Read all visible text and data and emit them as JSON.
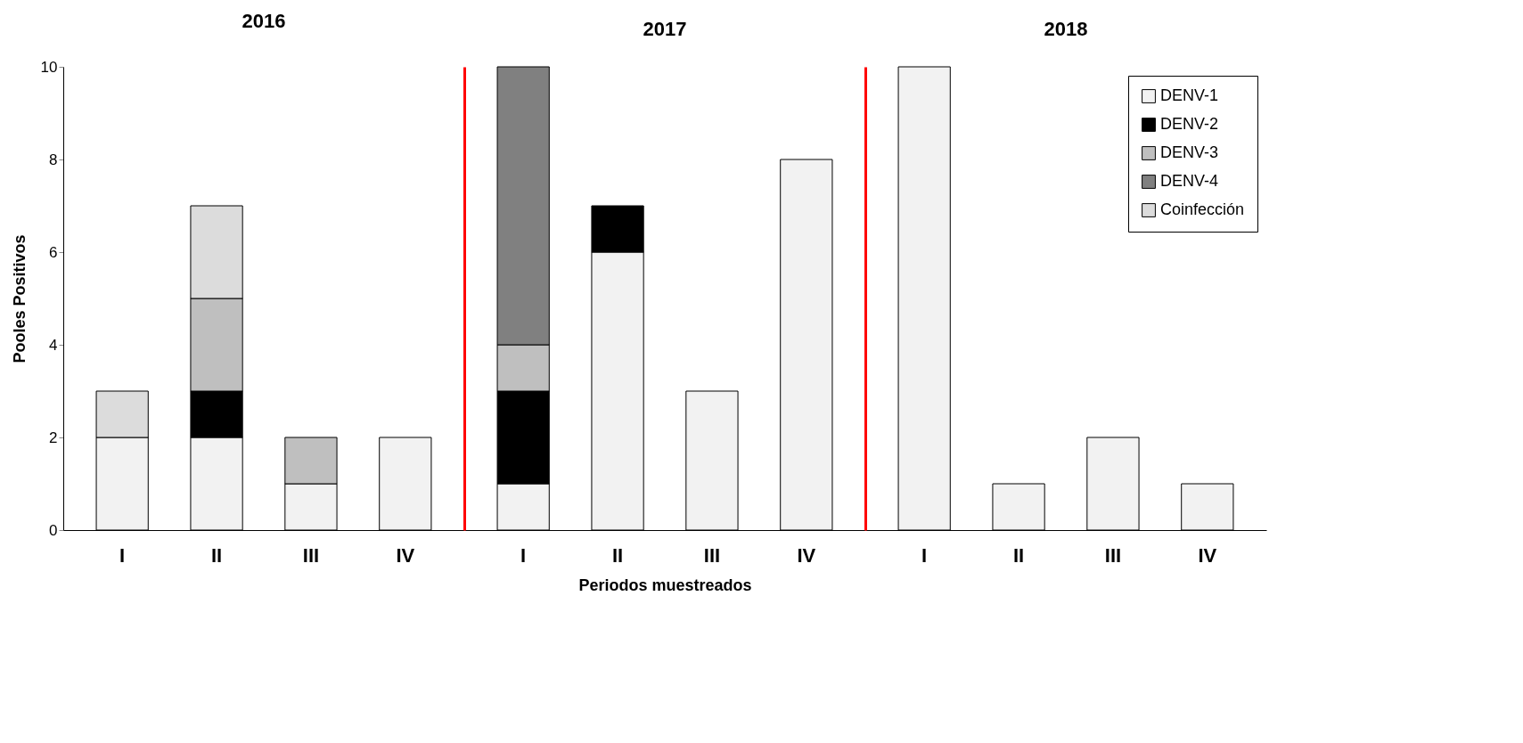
{
  "chart_data": [
    {
      "type": "bar",
      "title": "2016",
      "ylabel": "Pooles Positivos",
      "categories": [
        "I",
        "II",
        "III",
        "IV"
      ],
      "stacked": true,
      "ylim": [
        0,
        10
      ],
      "yticks": [
        0,
        2,
        4,
        6,
        8,
        10
      ],
      "grid": false,
      "series": [
        {
          "color": "#f2f2f2",
          "values": [
            2,
            2,
            1,
            2
          ]
        },
        {
          "color": "#000000",
          "values": [
            null,
            1,
            null,
            null
          ]
        },
        {
          "color": "#bfbfbf",
          "values": [
            null,
            2,
            1,
            null
          ]
        },
        {
          "color": "#dcdcdc",
          "values": [
            1,
            2,
            null,
            null
          ]
        }
      ]
    },
    {
      "type": "bar",
      "title": "2017",
      "xlabel": "Periodos muestreados",
      "categories": [
        "I",
        "II",
        "III",
        "IV"
      ],
      "stacked": true,
      "ylim": [
        0,
        10
      ],
      "yticks": [
        0,
        2,
        4,
        6,
        8,
        10
      ],
      "grid": false,
      "tick_labels": "x",
      "series": [
        {
          "color": "#f2f2f2",
          "values": [
            1,
            6,
            3,
            8
          ]
        },
        {
          "color": "#000000",
          "values": [
            2,
            1,
            null,
            null
          ]
        },
        {
          "color": "#bfbfbf",
          "values": [
            1,
            null,
            null,
            null
          ]
        },
        {
          "color": "#808080",
          "values": [
            6,
            null,
            null,
            null
          ]
        }
      ]
    },
    {
      "type": "bar",
      "title": "2018",
      "categories": [
        "I",
        "II",
        "III",
        "IV"
      ],
      "stacked": true,
      "ylim": [
        0,
        10
      ],
      "yticks": [
        0,
        2,
        4,
        6,
        8,
        10
      ],
      "grid": false,
      "legend": "top right",
      "tick_labels": "x",
      "series": [
        {
          "name": "DENV-1",
          "color": "#f2f2f2",
          "values": [
            10,
            1,
            2,
            1
          ]
        },
        {
          "name": "DENV-2",
          "color": "#000000",
          "values": [
            null,
            null,
            null,
            null
          ]
        },
        {
          "name": "DENV-3",
          "color": "#bfbfbf",
          "values": [
            null,
            null,
            null,
            null
          ]
        },
        {
          "name": "DENV-4",
          "color": "#808080",
          "values": [
            null,
            null,
            null,
            null
          ]
        },
        {
          "name": "Coinfección",
          "color": "#dcdcdc",
          "values": [
            null,
            null,
            null,
            null
          ]
        }
      ]
    }
  ]
}
